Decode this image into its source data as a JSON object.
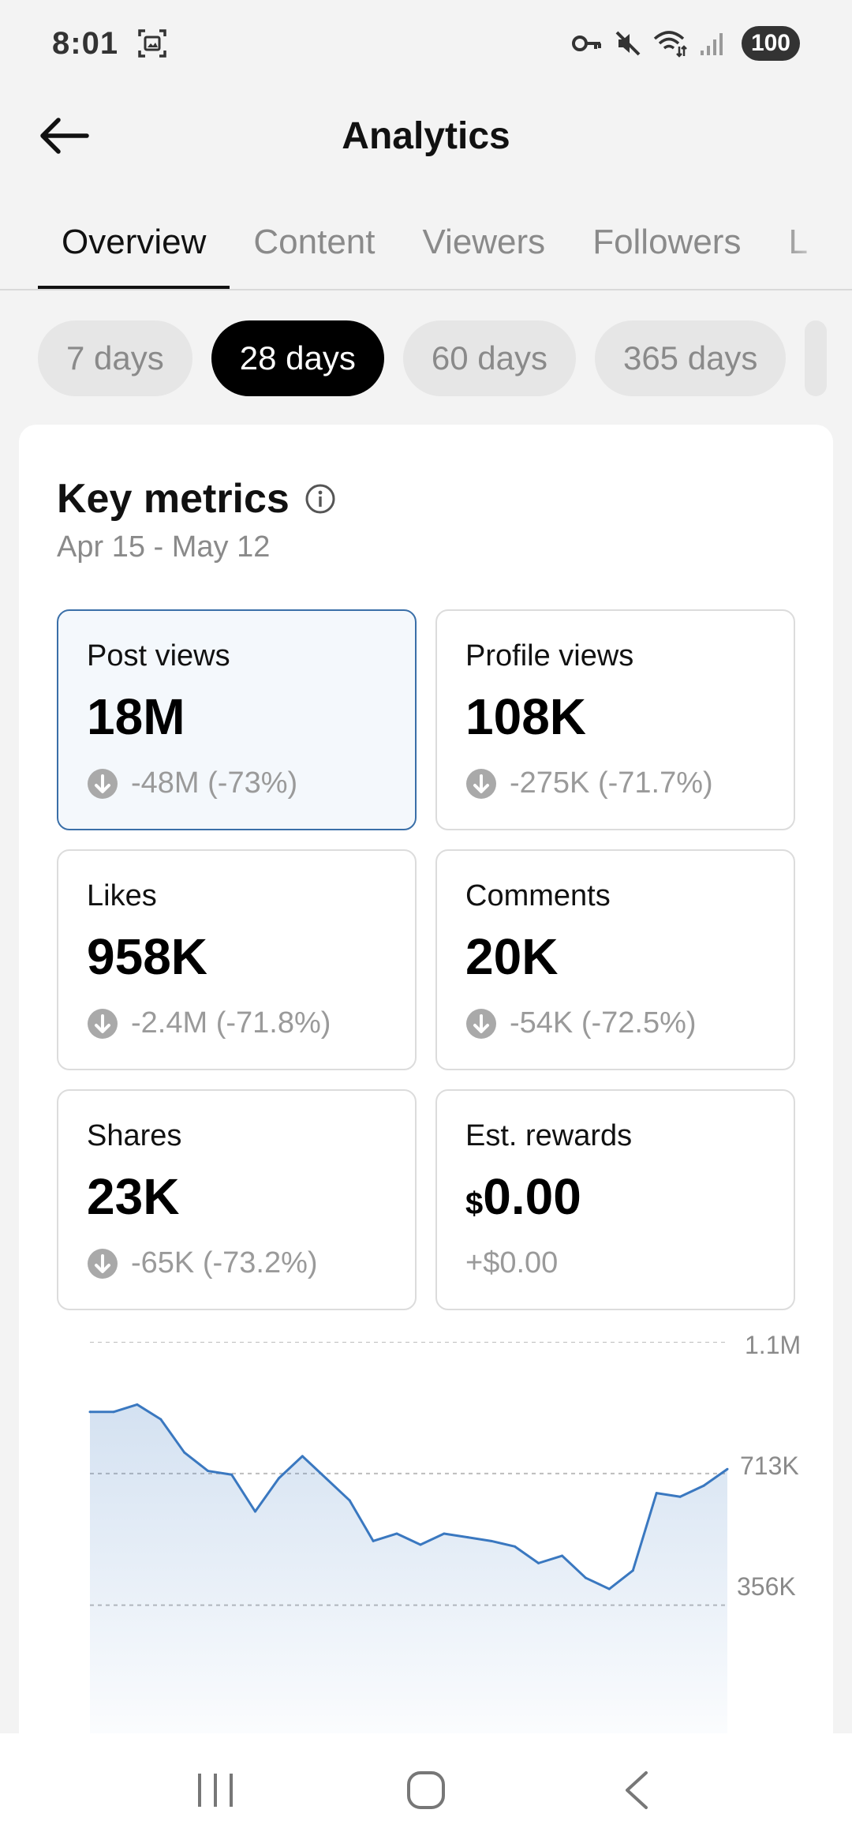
{
  "status": {
    "time": "8:01",
    "battery": "100",
    "icons": [
      "screenshot-icon",
      "key-icon",
      "mute-icon",
      "wifi-icon",
      "signal-icon"
    ]
  },
  "header": {
    "title": "Analytics",
    "back_icon": "back-arrow-icon"
  },
  "tabs": [
    {
      "label": "Overview",
      "active": true
    },
    {
      "label": "Content",
      "active": false
    },
    {
      "label": "Viewers",
      "active": false
    },
    {
      "label": "Followers",
      "active": false
    },
    {
      "label": "L",
      "active": false
    }
  ],
  "periods": [
    {
      "label": "7 days",
      "active": false
    },
    {
      "label": "28 days",
      "active": true
    },
    {
      "label": "60 days",
      "active": false
    },
    {
      "label": "365 days",
      "active": false
    }
  ],
  "key_metrics": {
    "title": "Key metrics",
    "date_range": "Apr 15 - May 12",
    "items": [
      {
        "label": "Post views",
        "value": "18M",
        "change": "-48M (-73%)",
        "selected": true
      },
      {
        "label": "Profile views",
        "value": "108K",
        "change": "-275K (-71.7%)"
      },
      {
        "label": "Likes",
        "value": "958K",
        "change": "-2.4M (-71.8%)"
      },
      {
        "label": "Comments",
        "value": "20K",
        "change": "-54K (-72.5%)"
      },
      {
        "label": "Shares",
        "value": "23K",
        "change": "-65K (-73.2%)"
      },
      {
        "label": "Est. rewards",
        "currency": "$",
        "value": "0.00",
        "change": "+$0.00"
      }
    ]
  },
  "chart_data": {
    "type": "area",
    "title": "",
    "xlabel": "",
    "ylabel": "",
    "y_tick_labels": [
      "1.1M",
      "713K",
      "356K"
    ],
    "y_ticks": [
      1070000,
      713000,
      356000
    ],
    "ylim": [
      0,
      1070000
    ],
    "grid": true,
    "color": "#3a78c0",
    "values": [
      880000,
      880000,
      900000,
      860000,
      770000,
      720000,
      710000,
      610000,
      700000,
      760000,
      700000,
      640000,
      530000,
      550000,
      520000,
      550000,
      540000,
      530000,
      515000,
      470000,
      490000,
      430000,
      400000,
      450000,
      660000,
      650000,
      680000,
      725000
    ]
  },
  "nav": {
    "recent_icon": "recent-apps-icon",
    "home_icon": "home-icon",
    "back_icon": "back-icon"
  },
  "colors": {
    "accent": "#3a78c0",
    "selected_border": "#3a6fa8",
    "selected_bg": "#f4f8fc",
    "muted_text": "#8a8a8a"
  }
}
